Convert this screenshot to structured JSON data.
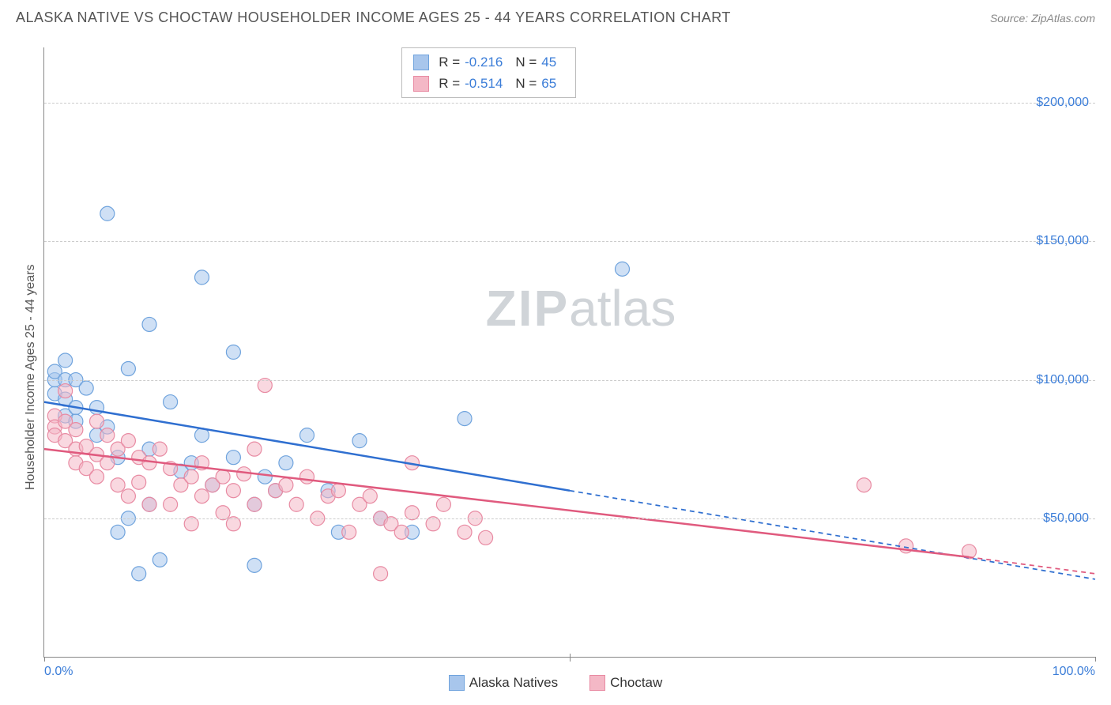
{
  "title": "ALASKA NATIVE VS CHOCTAW HOUSEHOLDER INCOME AGES 25 - 44 YEARS CORRELATION CHART",
  "source": "Source: ZipAtlas.com",
  "watermark_zip": "ZIP",
  "watermark_atlas": "atlas",
  "chart": {
    "type": "scatter-with-regression",
    "xlim": [
      0,
      100
    ],
    "ylim": [
      0,
      220000
    ],
    "x_ticks": [
      0,
      50,
      100
    ],
    "x_tick_labels": [
      "0.0%",
      "",
      "100.0%"
    ],
    "y_ticks": [
      50000,
      100000,
      150000,
      200000
    ],
    "y_tick_labels": [
      "$50,000",
      "$100,000",
      "$150,000",
      "$200,000"
    ],
    "y_axis_label": "Householder Income Ages 25 - 44 years",
    "grid_color": "#cccccc",
    "axis_color": "#888888",
    "background_color": "#ffffff",
    "point_radius": 9,
    "point_opacity": 0.55,
    "line_width": 2.5,
    "series": [
      {
        "name": "Alaska Natives",
        "color_fill": "#a8c6ec",
        "color_stroke": "#6fa3dd",
        "line_color": "#2f6fd0",
        "R": "-0.216",
        "N": "45",
        "regression": {
          "x1": 0,
          "y1": 92000,
          "x2": 50,
          "y2": 60000,
          "x2_ext": 100,
          "y2_ext": 28000
        },
        "points": [
          [
            1,
            95000
          ],
          [
            1,
            100000
          ],
          [
            1,
            103000
          ],
          [
            2,
            93000
          ],
          [
            2,
            100000
          ],
          [
            2,
            107000
          ],
          [
            2,
            87000
          ],
          [
            3,
            100000
          ],
          [
            3,
            90000
          ],
          [
            3,
            85000
          ],
          [
            4,
            97000
          ],
          [
            5,
            90000
          ],
          [
            5,
            80000
          ],
          [
            6,
            160000
          ],
          [
            6,
            83000
          ],
          [
            7,
            45000
          ],
          [
            7,
            72000
          ],
          [
            8,
            50000
          ],
          [
            8,
            104000
          ],
          [
            9,
            30000
          ],
          [
            10,
            120000
          ],
          [
            10,
            75000
          ],
          [
            10,
            55000
          ],
          [
            11,
            35000
          ],
          [
            12,
            92000
          ],
          [
            13,
            67000
          ],
          [
            14,
            70000
          ],
          [
            15,
            80000
          ],
          [
            15,
            137000
          ],
          [
            16,
            62000
          ],
          [
            18,
            110000
          ],
          [
            18,
            72000
          ],
          [
            20,
            55000
          ],
          [
            20,
            33000
          ],
          [
            21,
            65000
          ],
          [
            22,
            60000
          ],
          [
            23,
            70000
          ],
          [
            25,
            80000
          ],
          [
            27,
            60000
          ],
          [
            28,
            45000
          ],
          [
            30,
            78000
          ],
          [
            32,
            50000
          ],
          [
            35,
            45000
          ],
          [
            40,
            86000
          ],
          [
            55,
            140000
          ]
        ]
      },
      {
        "name": "Choctaw",
        "color_fill": "#f4b8c6",
        "color_stroke": "#e88aa2",
        "line_color": "#e05a7e",
        "R": "-0.514",
        "N": "65",
        "regression": {
          "x1": 0,
          "y1": 75000,
          "x2": 88,
          "y2": 36000,
          "x2_ext": 100,
          "y2_ext": 30000
        },
        "points": [
          [
            1,
            87000
          ],
          [
            1,
            83000
          ],
          [
            1,
            80000
          ],
          [
            2,
            96000
          ],
          [
            2,
            85000
          ],
          [
            2,
            78000
          ],
          [
            3,
            82000
          ],
          [
            3,
            75000
          ],
          [
            3,
            70000
          ],
          [
            4,
            76000
          ],
          [
            4,
            68000
          ],
          [
            5,
            85000
          ],
          [
            5,
            73000
          ],
          [
            5,
            65000
          ],
          [
            6,
            80000
          ],
          [
            6,
            70000
          ],
          [
            7,
            75000
          ],
          [
            7,
            62000
          ],
          [
            8,
            78000
          ],
          [
            8,
            58000
          ],
          [
            9,
            72000
          ],
          [
            9,
            63000
          ],
          [
            10,
            70000
          ],
          [
            10,
            55000
          ],
          [
            11,
            75000
          ],
          [
            12,
            68000
          ],
          [
            12,
            55000
          ],
          [
            13,
            62000
          ],
          [
            14,
            65000
          ],
          [
            14,
            48000
          ],
          [
            15,
            70000
          ],
          [
            15,
            58000
          ],
          [
            16,
            62000
          ],
          [
            17,
            65000
          ],
          [
            17,
            52000
          ],
          [
            18,
            60000
          ],
          [
            18,
            48000
          ],
          [
            19,
            66000
          ],
          [
            20,
            75000
          ],
          [
            20,
            55000
          ],
          [
            21,
            98000
          ],
          [
            22,
            60000
          ],
          [
            23,
            62000
          ],
          [
            24,
            55000
          ],
          [
            25,
            65000
          ],
          [
            26,
            50000
          ],
          [
            27,
            58000
          ],
          [
            28,
            60000
          ],
          [
            29,
            45000
          ],
          [
            30,
            55000
          ],
          [
            31,
            58000
          ],
          [
            32,
            50000
          ],
          [
            32,
            30000
          ],
          [
            33,
            48000
          ],
          [
            34,
            45000
          ],
          [
            35,
            70000
          ],
          [
            35,
            52000
          ],
          [
            37,
            48000
          ],
          [
            38,
            55000
          ],
          [
            40,
            45000
          ],
          [
            41,
            50000
          ],
          [
            42,
            43000
          ],
          [
            78,
            62000
          ],
          [
            82,
            40000
          ],
          [
            88,
            38000
          ]
        ]
      }
    ]
  },
  "legend": {
    "items": [
      "Alaska Natives",
      "Choctaw"
    ]
  }
}
